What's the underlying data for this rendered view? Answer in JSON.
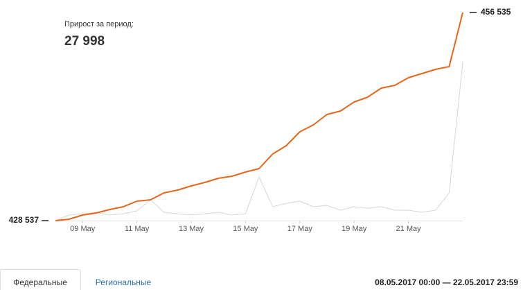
{
  "summary": {
    "label": "Прирост за период:",
    "value": "27 998"
  },
  "tabs": [
    "Федеральные",
    "Региональные"
  ],
  "period": "08.05.2017 00:00 — 22.05.2017 23:59",
  "chart_data": {
    "type": "line",
    "categories": [
      null,
      null,
      "09 May",
      null,
      null,
      null,
      "11 May",
      null,
      null,
      null,
      "13 May",
      null,
      null,
      null,
      "15 May",
      null,
      null,
      null,
      "17 May",
      null,
      null,
      null,
      "19 May",
      null,
      null,
      null,
      "21 May",
      null,
      null,
      null,
      null
    ],
    "series": [
      {
        "color": "#e8651a",
        "values": [
          428537,
          428724,
          429283,
          429563,
          430030,
          430403,
          431150,
          431337,
          432270,
          432643,
          433203,
          433670,
          434230,
          434510,
          435070,
          435536,
          437496,
          438616,
          440483,
          441416,
          442816,
          443283,
          444496,
          445150,
          446362,
          446736,
          447762,
          448322,
          448882,
          449255,
          456535
        ]
      },
      {
        "color": "#d6d6d6",
        "axis": "y2",
        "values": [
          0,
          270,
          330,
          400,
          270,
          330,
          470,
          1000,
          400,
          330,
          270,
          330,
          400,
          270,
          330,
          2100,
          670,
          830,
          930,
          670,
          730,
          500,
          670,
          600,
          670,
          500,
          500,
          400,
          500,
          1330,
          7600
        ]
      }
    ],
    "ylim": [
      428537,
      456535
    ],
    "yticks": [
      {
        "value": 428537,
        "label": "428 537"
      },
      {
        "value": 456535,
        "label": "456 535"
      }
    ],
    "y2lim": [
      0,
      10000
    ]
  }
}
